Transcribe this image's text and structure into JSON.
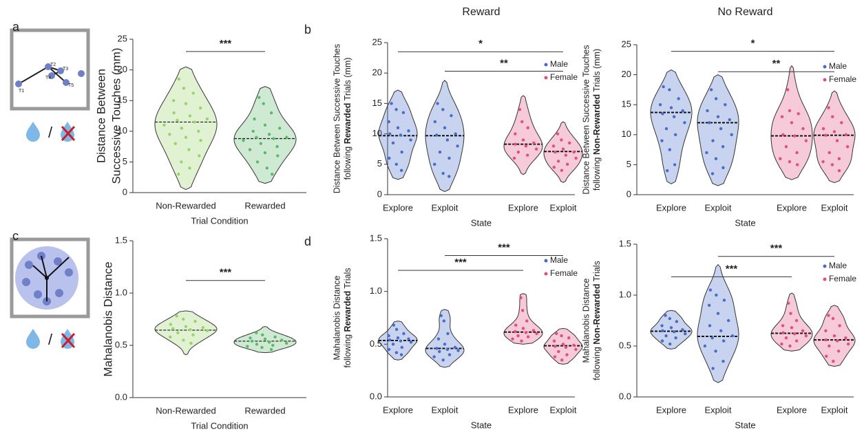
{
  "icons": {
    "touch_labels": [
      "T1",
      "T2",
      "T3",
      "T4",
      "T5"
    ],
    "separator": "/"
  },
  "chart_data": [
    {
      "type": "violin",
      "panel_label": "a",
      "ylabel": [
        "Distance Between",
        "Successive Touches (mm)"
      ],
      "xlabel": "Trial Condition",
      "ylim": [
        0,
        25
      ],
      "yticks": [
        0,
        5,
        10,
        15,
        20,
        25
      ],
      "series": [
        {
          "color": "#9bd36b",
          "categories": [
            "Non-Rewarded"
          ],
          "violins": [
            {
              "median": 11.5,
              "min": 0.5,
              "max": 20.5,
              "points": [
                18.5,
                17,
                16.2,
                15,
                14.5,
                13.8,
                13,
                12.5,
                12,
                11.8,
                11.5,
                11,
                10.5,
                10,
                9.5,
                9,
                8.5,
                8,
                7,
                6,
                5,
                4,
                3
              ]
            }
          ]
        },
        {
          "color": "#5fb86a",
          "categories": [
            "Rewarded"
          ],
          "violins": [
            {
              "median": 8.8,
              "min": 1.5,
              "max": 17.3,
              "points": [
                15.5,
                14.5,
                13,
                12,
                11,
                10.5,
                10,
                9.5,
                9,
                9,
                8.8,
                8.5,
                8,
                7.5,
                7,
                6.5,
                6,
                5,
                4,
                3
              ]
            }
          ]
        }
      ],
      "brackets": [
        {
          "text": "***",
          "from": 0,
          "to": 1,
          "y": 23
        }
      ]
    },
    {
      "type": "violin",
      "panel_label": "b",
      "title": "Reward",
      "ylabel": [
        "Distance Between Successive Touches",
        [
          {
            "text": "following "
          },
          {
            "text": "Rewarded",
            "bold": true
          },
          {
            "text": " Trials (mm)"
          }
        ]
      ],
      "xlabel": "State",
      "ylim": [
        0,
        25
      ],
      "yticks": [
        0,
        5,
        10,
        15,
        20,
        25
      ],
      "legend": "upper right",
      "series": [
        {
          "name": "Male",
          "color": "#4a6cc9",
          "categories": [
            "Explore",
            "Exploit"
          ],
          "violins": [
            {
              "median": 9.7,
              "min": 2.5,
              "max": 17.2,
              "points": [
                15,
                14,
                13.5,
                12,
                11,
                10.5,
                10,
                9.8,
                9,
                8.5,
                7,
                6,
                5,
                4
              ]
            },
            {
              "median": 9.7,
              "min": 0.5,
              "max": 18.8,
              "points": [
                15,
                14,
                13,
                12,
                11,
                10,
                9.8,
                9,
                8,
                7,
                6,
                5,
                3.5,
                3
              ]
            }
          ]
        },
        {
          "name": "Female",
          "color": "#e24f7e",
          "categories": [
            "Explore",
            "Exploit"
          ],
          "violins": [
            {
              "median": 8.3,
              "min": 3.3,
              "max": 16.3,
              "points": [
                14,
                12,
                11,
                10,
                9,
                8.5,
                8.3,
                8,
                7.5,
                7,
                6.5,
                6
              ]
            },
            {
              "median": 7.1,
              "min": 2,
              "max": 12,
              "points": [
                10,
                9,
                8.5,
                8,
                7.5,
                7,
                7,
                6.5,
                6,
                5.5,
                5,
                4.5,
                4
              ]
            }
          ]
        }
      ],
      "brackets": [
        {
          "text": "*",
          "from": 0,
          "to": 3,
          "y": 23.5
        },
        {
          "text": "**",
          "from": 1,
          "to": 3,
          "y": 20.3
        }
      ]
    },
    {
      "type": "violin",
      "title": "No Reward",
      "ylabel": [
        "Distance Between Successive Touches",
        [
          {
            "text": "following "
          },
          {
            "text": "Non-Rewarded",
            "bold": true
          },
          {
            "text": " Trials (mm)"
          }
        ]
      ],
      "xlabel": "State",
      "ylim": [
        0,
        25
      ],
      "yticks": [
        0,
        5,
        10,
        15,
        20,
        25
      ],
      "legend": "upper right",
      "series": [
        {
          "name": "Male",
          "color": "#4a6cc9",
          "categories": [
            "Explore",
            "Exploit"
          ],
          "violins": [
            {
              "median": 13.7,
              "min": 1.8,
              "max": 20.8,
              "points": [
                18,
                17.5,
                16,
                15,
                14.5,
                14,
                13.5,
                13,
                12,
                11,
                10,
                9,
                7.5,
                5,
                4
              ]
            },
            {
              "median": 12,
              "min": 1.5,
              "max": 20,
              "points": [
                17.5,
                16,
                15,
                14,
                13,
                12.5,
                12,
                11,
                10,
                9,
                8,
                7,
                6,
                4.5,
                3.5
              ]
            }
          ]
        },
        {
          "name": "Female",
          "color": "#e24f7e",
          "categories": [
            "Explore",
            "Exploit"
          ],
          "violins": [
            {
              "median": 9.8,
              "min": 2.5,
              "max": 21.5,
              "points": [
                17.5,
                14,
                13.5,
                13,
                12,
                11,
                10,
                9.8,
                9,
                8,
                7,
                6,
                5.5,
                5
              ]
            },
            {
              "median": 9.9,
              "min": 2,
              "max": 17.3,
              "points": [
                14.5,
                13,
                12,
                11,
                10.5,
                10,
                9.9,
                9,
                8,
                7,
                6,
                5.5,
                5,
                4
              ]
            }
          ]
        }
      ],
      "brackets": [
        {
          "text": "*",
          "from": 0,
          "to": 3,
          "y": 23.9
        },
        {
          "text": "**",
          "from": 1,
          "to": 3,
          "y": 20.5
        }
      ]
    },
    {
      "type": "violin",
      "panel_label": "c",
      "ylabel": [
        "Mahalanobis Distance"
      ],
      "xlabel": "Trial Condition",
      "ylim": [
        0,
        1.5
      ],
      "yticks": [
        {
          "value": 0,
          "label": "0.0"
        },
        {
          "value": 0.5,
          "label": "0.5"
        },
        {
          "value": 1,
          "label": "1.0"
        },
        {
          "value": 1.5,
          "label": "1.5"
        }
      ],
      "series": [
        {
          "color": "#9bd36b",
          "categories": [
            "Non-Rewarded"
          ],
          "violins": [
            {
              "median": 0.645,
              "min": 0.41,
              "max": 0.83,
              "points": [
                0.78,
                0.75,
                0.73,
                0.7,
                0.68,
                0.67,
                0.66,
                0.65,
                0.64,
                0.62,
                0.6,
                0.58,
                0.55,
                0.52
              ]
            }
          ]
        },
        {
          "color": "#5fb86a",
          "categories": [
            "Rewarded"
          ],
          "violins": [
            {
              "median": 0.54,
              "min": 0.43,
              "max": 0.68,
              "points": [
                0.62,
                0.6,
                0.58,
                0.57,
                0.56,
                0.55,
                0.54,
                0.53,
                0.52,
                0.51,
                0.5,
                0.49,
                0.48,
                0.46
              ]
            }
          ]
        }
      ],
      "brackets": [
        {
          "text": "***",
          "from": 0,
          "to": 1,
          "y": 1.12
        }
      ]
    },
    {
      "type": "violin",
      "panel_label": "d",
      "ylabel": [
        "Mahalanobis Distance",
        [
          {
            "text": "following "
          },
          {
            "text": "Rewarded",
            "bold": true
          },
          {
            "text": " Trials"
          }
        ]
      ],
      "xlabel": "State",
      "ylim": [
        0,
        1.5
      ],
      "yticks": [
        {
          "value": 0,
          "label": "0.0"
        },
        {
          "value": 0.5,
          "label": "0.5"
        },
        {
          "value": 1,
          "label": "1.0"
        },
        {
          "value": 1.5,
          "label": "1.5"
        }
      ],
      "legend": "upper right",
      "series": [
        {
          "name": "Male",
          "color": "#4a6cc9",
          "categories": [
            "Explore",
            "Exploit"
          ],
          "violins": [
            {
              "median": 0.535,
              "min": 0.35,
              "max": 0.72,
              "points": [
                0.68,
                0.64,
                0.6,
                0.58,
                0.56,
                0.55,
                0.54,
                0.53,
                0.52,
                0.5,
                0.47,
                0.45,
                0.42,
                0.4
              ]
            },
            {
              "median": 0.46,
              "min": 0.28,
              "max": 0.83,
              "points": [
                0.77,
                0.72,
                0.6,
                0.55,
                0.5,
                0.47,
                0.46,
                0.45,
                0.44,
                0.43,
                0.4,
                0.38,
                0.35
              ]
            }
          ]
        },
        {
          "name": "Female",
          "color": "#e24f7e",
          "categories": [
            "Explore",
            "Exploit"
          ],
          "violins": [
            {
              "median": 0.615,
              "min": 0.5,
              "max": 0.98,
              "points": [
                0.94,
                0.82,
                0.72,
                0.68,
                0.65,
                0.63,
                0.62,
                0.61,
                0.6,
                0.58,
                0.57,
                0.55,
                0.53
              ]
            },
            {
              "median": 0.485,
              "min": 0.31,
              "max": 0.65,
              "points": [
                0.6,
                0.58,
                0.56,
                0.53,
                0.5,
                0.49,
                0.48,
                0.47,
                0.45,
                0.43,
                0.4,
                0.38,
                0.35
              ]
            }
          ]
        }
      ],
      "brackets": [
        {
          "text": "***",
          "from": 0,
          "to": 2,
          "y": 1.2
        },
        {
          "text": "***",
          "from": 1,
          "to": 3,
          "y": 1.34
        }
      ]
    },
    {
      "type": "violin",
      "ylabel": [
        "Mahalanobis Distance",
        [
          {
            "text": "following "
          },
          {
            "text": "Non-Rewarded",
            "bold": true
          },
          {
            "text": " Trials"
          }
        ]
      ],
      "xlabel": "State",
      "ylim": [
        0,
        1.5
      ],
      "yticks": [
        {
          "value": 0,
          "label": "0.0"
        },
        {
          "value": 0.5,
          "label": "0.5"
        },
        {
          "value": 1,
          "label": "1.0"
        },
        {
          "value": 1.5,
          "label": "1.5"
        }
      ],
      "legend": "upper right",
      "series": [
        {
          "name": "Male",
          "color": "#4a6cc9",
          "categories": [
            "Explore",
            "Exploit"
          ],
          "violins": [
            {
              "median": 0.645,
              "min": 0.47,
              "max": 0.85,
              "points": [
                0.8,
                0.77,
                0.74,
                0.7,
                0.68,
                0.66,
                0.65,
                0.64,
                0.62,
                0.6,
                0.58,
                0.55,
                0.52
              ]
            },
            {
              "median": 0.595,
              "min": 0.14,
              "max": 1.3,
              "points": [
                1.05,
                1,
                0.95,
                0.9,
                0.82,
                0.75,
                0.7,
                0.65,
                0.6,
                0.58,
                0.55,
                0.5,
                0.45,
                0.35,
                0.28
              ]
            }
          ]
        },
        {
          "name": "Female",
          "color": "#e24f7e",
          "categories": [
            "Explore",
            "Exploit"
          ],
          "violins": [
            {
              "median": 0.625,
              "min": 0.45,
              "max": 1.02,
              "points": [
                0.92,
                0.82,
                0.75,
                0.7,
                0.68,
                0.65,
                0.63,
                0.62,
                0.6,
                0.58,
                0.55,
                0.52,
                0.5
              ]
            },
            {
              "median": 0.56,
              "min": 0.3,
              "max": 0.9,
              "points": [
                0.8,
                0.77,
                0.7,
                0.65,
                0.6,
                0.58,
                0.56,
                0.55,
                0.52,
                0.5,
                0.45,
                0.4,
                0.35
              ]
            }
          ]
        }
      ],
      "brackets": [
        {
          "text": "***",
          "from": 0,
          "to": 2,
          "y": 1.18
        },
        {
          "text": "***",
          "from": 1,
          "to": 3,
          "y": 1.38
        }
      ]
    }
  ]
}
